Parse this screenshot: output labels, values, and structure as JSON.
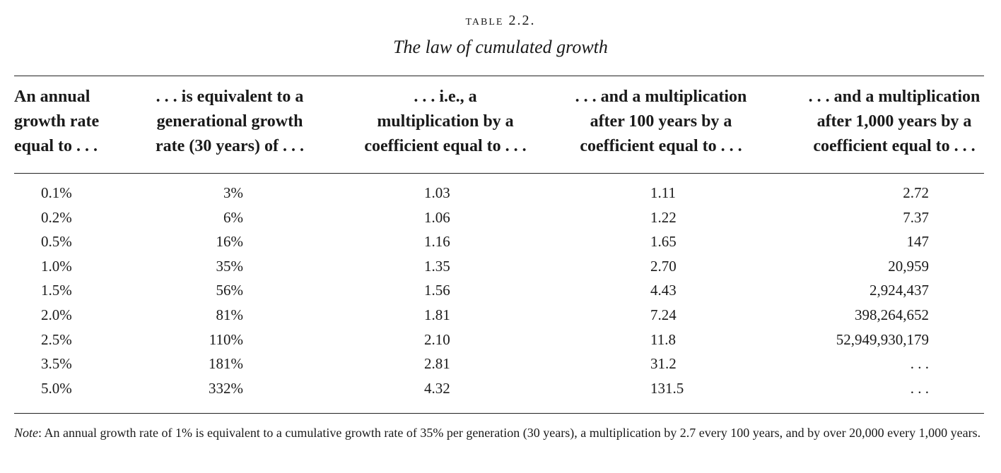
{
  "table": {
    "label": "TABLE 2.2.",
    "title": "The law of cumulated growth",
    "headers": [
      {
        "lines": [
          "An annual",
          "growth rate",
          "equal to . . ."
        ]
      },
      {
        "lines": [
          ". . . is equivalent to a",
          "generational growth",
          "rate (30 years) of . . ."
        ]
      },
      {
        "lines": [
          ". . . i.e., a",
          "multiplication by a",
          "coefficient equal to . . ."
        ]
      },
      {
        "lines": [
          ". . . and a multiplication",
          "after 100 years by a",
          "coefficient equal to . . ."
        ]
      },
      {
        "lines": [
          ". . . and a multiplication",
          "after 1,000 years by a",
          "coefficient equal to . . ."
        ]
      }
    ],
    "rows": [
      [
        "0.1%",
        "3%",
        "1.03",
        "1.11",
        "2.72"
      ],
      [
        "0.2%",
        "6%",
        "1.06",
        "1.22",
        "7.37"
      ],
      [
        "0.5%",
        "16%",
        "1.16",
        "1.65",
        "147"
      ],
      [
        "1.0%",
        "35%",
        "1.35",
        "2.70",
        "20,959"
      ],
      [
        "1.5%",
        "56%",
        "1.56",
        "4.43",
        "2,924,437"
      ],
      [
        "2.0%",
        "81%",
        "1.81",
        "7.24",
        "398,264,652"
      ],
      [
        "2.5%",
        "110%",
        "2.10",
        "11.8",
        "52,949,930,179"
      ],
      [
        "3.5%",
        "181%",
        "2.81",
        "31.2",
        ". . ."
      ],
      [
        "5.0%",
        "332%",
        "4.32",
        "131.5",
        ". . ."
      ]
    ],
    "note_label": "Note",
    "note_text": ": An annual growth rate of 1% is equivalent to a cumulative growth rate of 35% per generation (30 years), a multiplication by 2.7 every 100 years, and by over 20,000 every 1,000 years."
  }
}
